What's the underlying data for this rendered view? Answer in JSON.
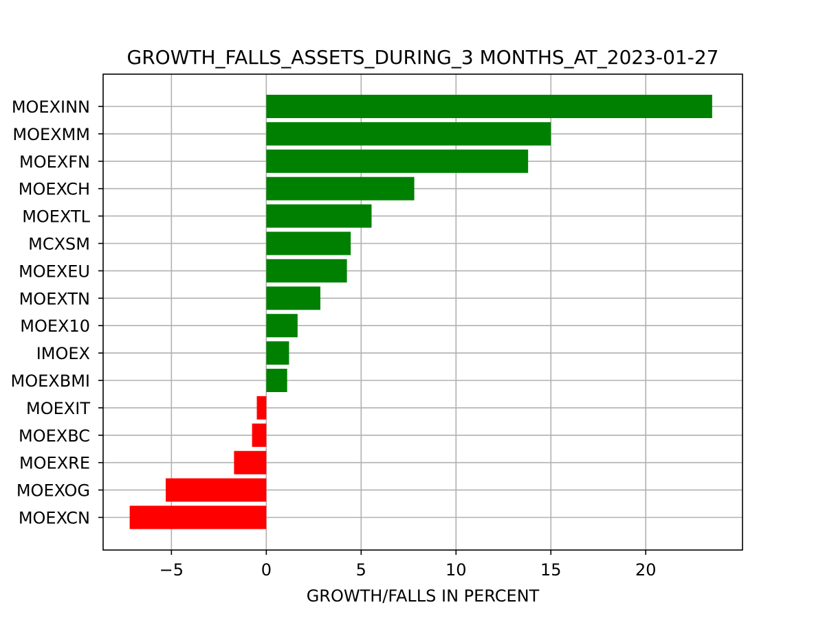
{
  "chart_data": {
    "type": "bar",
    "orientation": "horizontal",
    "title": "GROWTH_FALLS_ASSETS_DURING_3 MONTHS_AT_2023-01-27",
    "xlabel": "GROWTH/FALLS IN PERCENT",
    "ylabel": "",
    "categories": [
      "MOEXINN",
      "MOEXMM",
      "MOEXFN",
      "MOEXCH",
      "MOEXTL",
      "MCXSM",
      "MOEXEU",
      "MOEXTN",
      "MOEX10",
      "IMOEX",
      "MOEXBMI",
      "MOEXIT",
      "MOEXBC",
      "MOEXRE",
      "MOEXOG",
      "MOEXCN"
    ],
    "values": [
      23.5,
      15.0,
      13.8,
      7.8,
      5.55,
      4.45,
      4.25,
      2.85,
      1.65,
      1.2,
      1.1,
      -0.5,
      -0.75,
      -1.7,
      -5.3,
      -7.2
    ],
    "xlim": [
      -8.6,
      25.1
    ],
    "xticks": [
      -5,
      0,
      5,
      10,
      15,
      20
    ],
    "xtick_labels": [
      "−5",
      "0",
      "5",
      "10",
      "15",
      "20"
    ],
    "grid": true,
    "colors": {
      "positive": "#008000",
      "negative": "#ff0000",
      "grid": "#b0b0b0",
      "axes": "#000000"
    }
  }
}
